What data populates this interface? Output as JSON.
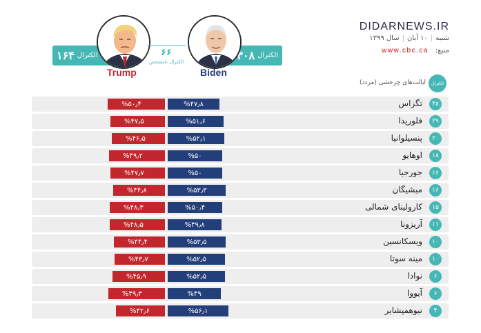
{
  "brand": "DIDARNEWS.IR",
  "date": {
    "day": "شنبه",
    "date": "۱۰ آبان",
    "year": "سال ۱۳۹۹"
  },
  "source": {
    "label": "منبع:",
    "url": "www.cbc.ca"
  },
  "colors": {
    "teal": "#45b8b5",
    "biden_blue": "#233f7a",
    "trump_red": "#c1272d"
  },
  "biden": {
    "name": "Biden",
    "electoral_votes": "۳۰۸",
    "electoral_label": "الکترال"
  },
  "trump": {
    "name": "Trump",
    "electoral_votes": "۱۶۴",
    "electoral_label": "الکترال"
  },
  "undecided": {
    "count": "۶۶",
    "label": "الکترال نامشخص"
  },
  "table": {
    "col_electoral": "الکترال",
    "title": "ایالت‌های چرخشی (مردد)"
  },
  "rows": [
    {
      "electoral": "۳۸",
      "state": "تگزاس",
      "biden_label": "%۴۷٫۸",
      "trump_label": "%۵۰٫۴",
      "biden_pct": 47.8,
      "trump_pct": 50.4
    },
    {
      "electoral": "۲۹",
      "state": "فلوریدا",
      "biden_label": "%۵۱٫۶",
      "trump_label": "%۴۷٫۵",
      "biden_pct": 51.6,
      "trump_pct": 47.5
    },
    {
      "electoral": "۲۰",
      "state": "پنسیلوانیا",
      "biden_label": "%۵۲٫۱",
      "trump_label": "%۴۶٫۵",
      "biden_pct": 52.1,
      "trump_pct": 46.5
    },
    {
      "electoral": "۱۸",
      "state": "اوهایو",
      "biden_label": "%۵۰",
      "trump_label": "%۴۹٫۲",
      "biden_pct": 50,
      "trump_pct": 49.2
    },
    {
      "electoral": "۱۶",
      "state": "جورجیا",
      "biden_label": "%۵۰",
      "trump_label": "%۴۷٫۷",
      "biden_pct": 50,
      "trump_pct": 47.7
    },
    {
      "electoral": "۱۶",
      "state": "میشیگان",
      "biden_label": "%۵۳٫۳",
      "trump_label": "%۴۴٫۸",
      "biden_pct": 53.3,
      "trump_pct": 44.8
    },
    {
      "electoral": "۱۵",
      "state": "کارولینای شمالی",
      "biden_label": "%۵۰٫۴",
      "trump_label": "%۴۸٫۳",
      "biden_pct": 50.4,
      "trump_pct": 48.3
    },
    {
      "electoral": "۱۱",
      "state": "آریزونا",
      "biden_label": "%۴۹٫۸",
      "trump_label": "%۴۸٫۵",
      "biden_pct": 49.8,
      "trump_pct": 48.5
    },
    {
      "electoral": "۱۰",
      "state": "ویسکانسین",
      "biden_label": "%۵۳٫۵",
      "trump_label": "%۴۴٫۴",
      "biden_pct": 53.5,
      "trump_pct": 44.4
    },
    {
      "electoral": "۱۰",
      "state": "مینه سوتا",
      "biden_label": "%۵۲٫۵",
      "trump_label": "%۴۳٫۷",
      "biden_pct": 52.5,
      "trump_pct": 43.7
    },
    {
      "electoral": "۶",
      "state": "نوادا",
      "biden_label": "%۵۲٫۵",
      "trump_label": "%۴۵٫۹",
      "biden_pct": 52.5,
      "trump_pct": 45.9
    },
    {
      "electoral": "۶",
      "state": "آیووا",
      "biden_label": "%۴۹",
      "trump_label": "%۴۹٫۳",
      "biden_pct": 49,
      "trump_pct": 49.3
    },
    {
      "electoral": "۴",
      "state": "نیوهمپشایر",
      "biden_label": "%۵۶٫۱",
      "trump_label": "%۴۲٫۶",
      "biden_pct": 56.1,
      "trump_pct": 42.6
    }
  ]
}
